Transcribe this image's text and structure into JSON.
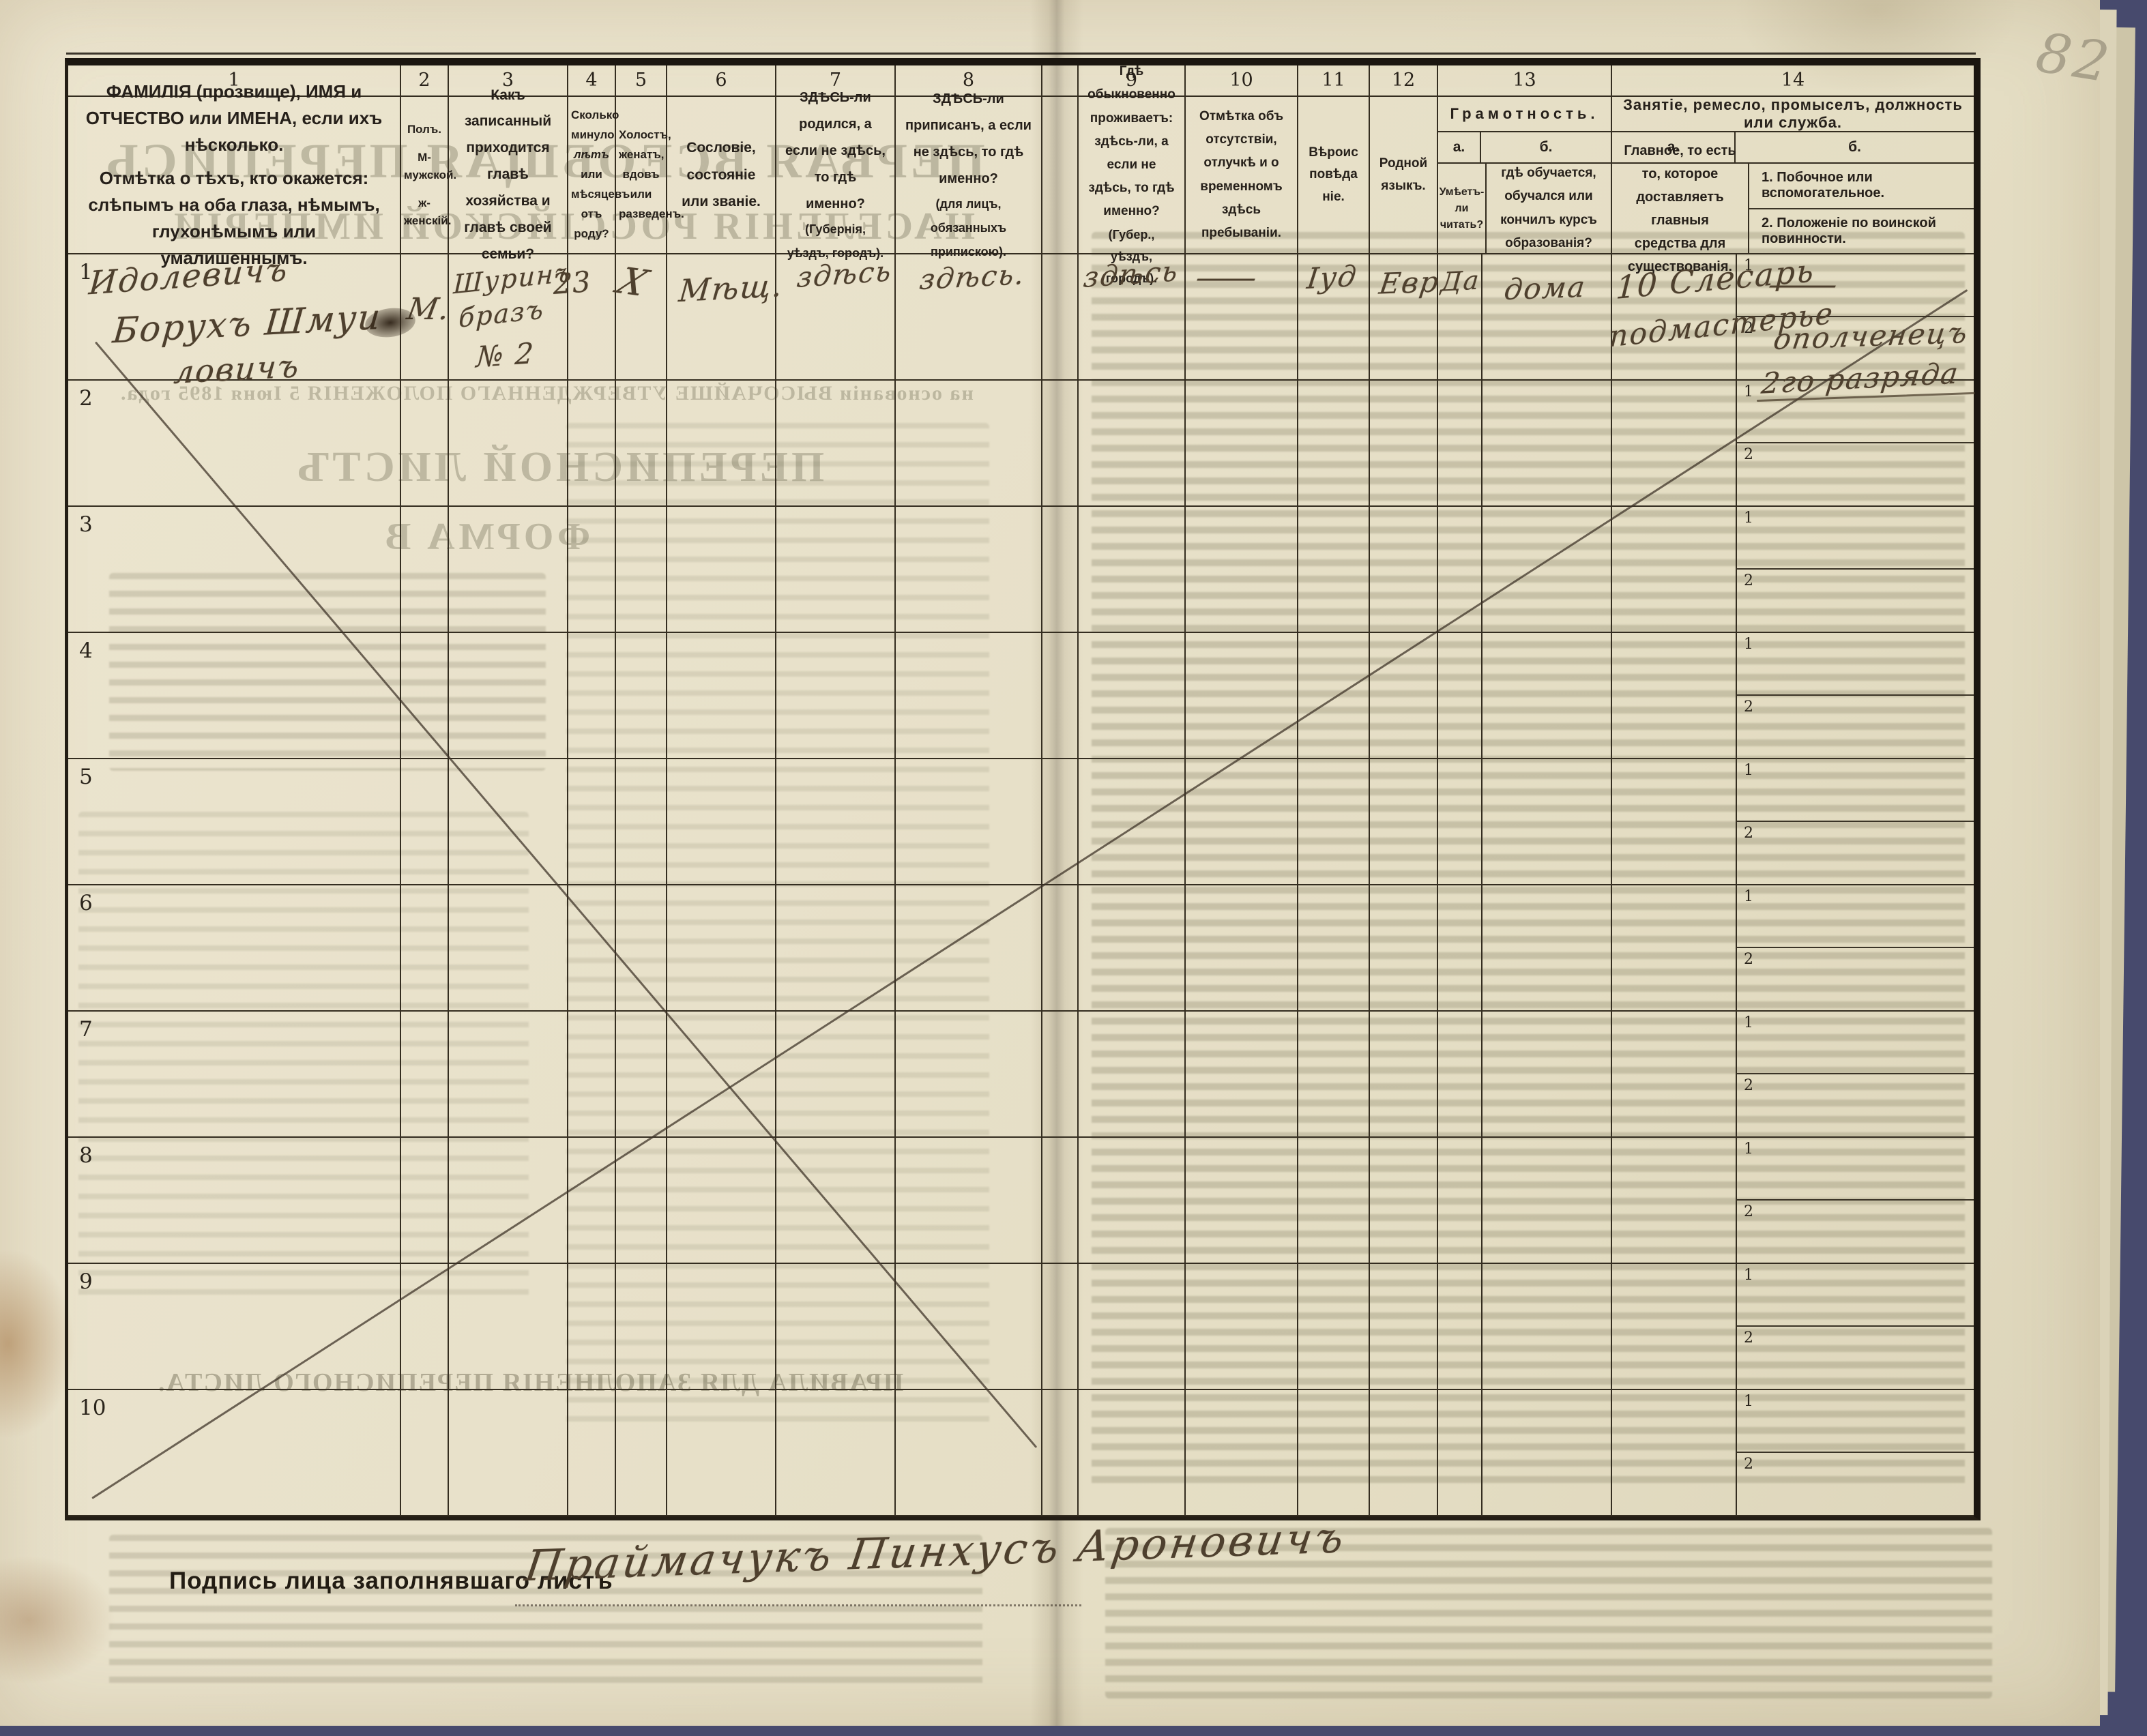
{
  "page": {
    "pencil_number": "82"
  },
  "table": {
    "column_numbers": {
      "n1": "1",
      "n2": "2",
      "n3": "3",
      "n4": "4",
      "n5": "5",
      "n6": "6",
      "n7": "7",
      "n8": "8",
      "n9": "9",
      "n10": "10",
      "n11": "11",
      "n12": "12",
      "n13": "13",
      "n14": "14"
    },
    "headers": {
      "col1_title": "ФАМИЛІЯ (прозвище), ИМЯ и ОТЧЕСТВО или ИМЕНА, если ихъ нѣсколько.",
      "col1_note": "Отмѣтка о тѣхъ, кто окажется: слѣпымъ на оба глаза, нѣмымъ, глухонѣмымъ или умалишеннымъ.",
      "col2_title": "Полъ.",
      "col2_m": "М-мужской.",
      "col2_f": "ж-женскій.",
      "col3": "Какъ записанный приходится главѣ хозяйства и главѣ своей семьи?",
      "col4_l1": "Сколько минуло",
      "col4_l2": "лѣтъ",
      "col4_l3": "или мѣсяцевъ",
      "col4_l4": "отъ роду?",
      "col5": "Холостъ, женатъ, вдовъ или разведенъ.",
      "col6": "Сословіе, состояніе или званіе.",
      "col7_main": "ЗДѢСЬ-ли родился, а если не здѣсь, то гдѣ именно?",
      "col7_paren": "(Губернія, уѣздъ, городъ).",
      "col8_main": "ЗДѢСЬ-ли приписанъ, а если не здѣсь, то гдѣ именно?",
      "col8_paren": "(для лицъ, обязанныхъ припискою).",
      "col9_main": "Гдѣ обыкновенно проживаетъ: здѣсь-ли, а если не здѣсь, то гдѣ именно?",
      "col9_paren": "(Губер., уѣздъ, городъ).",
      "col10": "Отмѣтка объ отсутствіи, отлучкѣ и о временномъ здѣсь пребываніи.",
      "col11": "Вѣроисповѣданіе.",
      "col12": "Родной языкъ.",
      "col13_title": "Грамотность.",
      "col13_a_label": "а.",
      "col13_b_label": "б.",
      "col13_a": "Умѣетъ-ли читать?",
      "col13_b": "гдѣ обучается, обучался или кончилъ курсъ образованія?",
      "col14_title": "Занятіе, ремесло, промыселъ, должность или служба.",
      "col14_a_label": "а.",
      "col14_b_label": "б.",
      "col14_a": "Главное, то есть то, которое доставляетъ главныя средства для существованія.",
      "col14_b_1": "1. Побочное или вспомогательное.",
      "col14_b_2": "2. Положеніе по воинской повинности."
    },
    "row_numbers": [
      "1",
      "2",
      "3",
      "4",
      "5",
      "6",
      "7",
      "8",
      "9",
      "10"
    ],
    "subrow_labels": [
      "1",
      "2"
    ]
  },
  "entries": {
    "row1": {
      "name_l1": "Идолевичъ",
      "name_l2": "Борухъ Шмуи",
      "name_l3": "ловичъ",
      "sex": "М.",
      "relation_l1": "Шуринъ",
      "relation_l2": "бразъ",
      "relation_l3": "№ 2",
      "age": "23",
      "marital": "Х",
      "estate": "Мѣщ.",
      "birthplace": "здѣсь",
      "registered": "здѣсь.",
      "residence": "здѣсь",
      "absence": "—",
      "religion": "Іуд",
      "language": "Евр",
      "literacy_a": "Да",
      "literacy_b": "дома",
      "occupation_l1": "10 Слесарь",
      "occupation_l2": "подмастерье",
      "occupation_side": "—",
      "military_l1": "ополченецъ",
      "military_l2": "2го разряда"
    }
  },
  "footer": {
    "signature_label": "Подпись лица заполнявшаго листъ",
    "signature": "Праймачукъ Пинхусъ Ароновичъ"
  },
  "bleedthrough": {
    "title1": "ПЕРВАЯ ВСЕОБЩАЯ ПЕРЕПИСЬ",
    "title2": "НАСЕЛЕНІЯ РОССІЙСКОЙ ИМПЕРІИ",
    "subtitle": "на основаніи ВЫСОЧАЙШЕ УТВЕРЖДЕННАГО ПОЛОЖЕНІЯ 5 Іюня 1895 года.",
    "form_title": "ПЕРЕПИСНОЙ ЛИСТЪ",
    "form_b": "ФОРМА В",
    "rules_title": "ПРАВИЛА ДЛЯ ЗАПОЛНЕНІЯ ПЕРЕПИСНОГО ЛИСТА."
  }
}
